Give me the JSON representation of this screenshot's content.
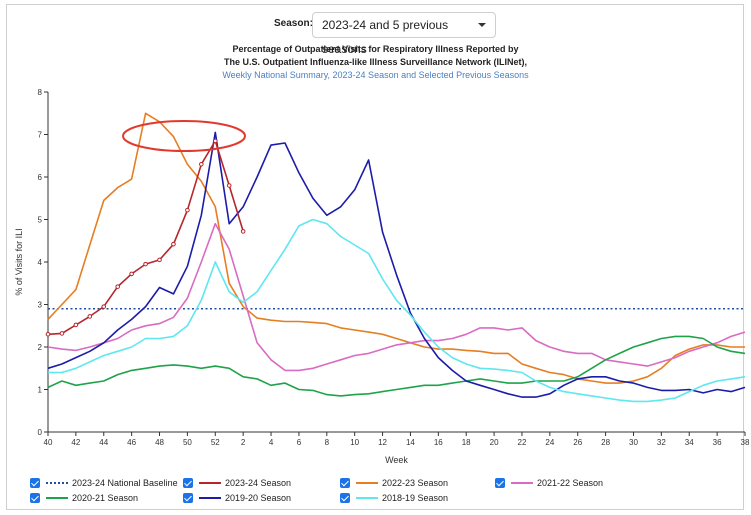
{
  "selector": {
    "label": "Season:",
    "value": "2023-24 and 5 previous seasons"
  },
  "titles": {
    "line1": "Percentage of Outpatient Visits for Respiratory Illness Reported by",
    "line2": "The U.S. Outpatient Influenza-like Illness Surveillance Network (ILINet),",
    "line3": "Weekly National Summary, 2023-24 Season and Selected Previous Seasons"
  },
  "colors": {
    "link": "#4a7fc1",
    "checkbox": "#1a73e8",
    "annotation": "#e03a2e"
  },
  "chart_data": {
    "type": "line",
    "xlabel": "Week",
    "ylabel": "% of Visits for ILI",
    "ylim": [
      0,
      8
    ],
    "yticks": [
      "0",
      "1",
      "2",
      "3",
      "4",
      "5",
      "6",
      "7",
      "8"
    ],
    "xticks": [
      "40",
      "42",
      "44",
      "46",
      "48",
      "50",
      "52",
      "2",
      "4",
      "6",
      "8",
      "10",
      "12",
      "14",
      "16",
      "18",
      "20",
      "22",
      "24",
      "26",
      "28",
      "30",
      "32",
      "34",
      "36",
      "38"
    ],
    "grid": false,
    "baseline": {
      "name": "2023-24 National Baseline",
      "value": 2.9,
      "color": "#1f4fa0"
    },
    "series": [
      {
        "name": "2023-24 Season",
        "color": "#b5262b",
        "markers": true,
        "values": [
          2.3,
          2.32,
          2.52,
          2.72,
          2.95,
          3.42,
          3.72,
          3.95,
          4.05,
          4.42,
          5.22,
          6.3,
          6.85,
          5.8,
          4.72
        ]
      },
      {
        "name": "2022-23 Season",
        "color": "#e67e22",
        "values": [
          2.65,
          3.0,
          3.35,
          4.4,
          5.45,
          5.75,
          5.95,
          7.5,
          7.3,
          6.95,
          6.3,
          5.9,
          5.3,
          3.5,
          2.95,
          2.68,
          2.63,
          2.6,
          2.6,
          2.58,
          2.55,
          2.45,
          2.4,
          2.35,
          2.3,
          2.2,
          2.1,
          2.0,
          1.95,
          1.95,
          1.92,
          1.9,
          1.85,
          1.85,
          1.6,
          1.5,
          1.4,
          1.35,
          1.25,
          1.2,
          1.15,
          1.15,
          1.2,
          1.3,
          1.5,
          1.8,
          1.95,
          2.05,
          2.05,
          2.0,
          2.0
        ]
      },
      {
        "name": "2021-22 Season",
        "color": "#d96bc2",
        "values": [
          2.0,
          1.95,
          1.92,
          2.0,
          2.1,
          2.2,
          2.4,
          2.5,
          2.55,
          2.7,
          3.15,
          4.0,
          4.9,
          4.3,
          3.2,
          2.1,
          1.7,
          1.45,
          1.45,
          1.5,
          1.6,
          1.7,
          1.8,
          1.85,
          1.95,
          2.05,
          2.1,
          2.15,
          2.15,
          2.2,
          2.3,
          2.45,
          2.45,
          2.4,
          2.45,
          2.15,
          2.0,
          1.9,
          1.85,
          1.85,
          1.7,
          1.65,
          1.6,
          1.55,
          1.65,
          1.75,
          1.9,
          2.0,
          2.1,
          2.25,
          2.35
        ]
      },
      {
        "name": "2020-21 Season",
        "color": "#1fa34a",
        "values": [
          1.05,
          1.2,
          1.1,
          1.15,
          1.2,
          1.35,
          1.45,
          1.5,
          1.55,
          1.58,
          1.55,
          1.5,
          1.55,
          1.5,
          1.3,
          1.25,
          1.1,
          1.15,
          1.0,
          0.98,
          0.88,
          0.85,
          0.88,
          0.9,
          0.95,
          1.0,
          1.05,
          1.1,
          1.1,
          1.15,
          1.2,
          1.25,
          1.2,
          1.15,
          1.15,
          1.2,
          1.2,
          1.2,
          1.3,
          1.5,
          1.7,
          1.85,
          2.0,
          2.1,
          2.2,
          2.25,
          2.25,
          2.2,
          2.0,
          1.9,
          1.85
        ]
      },
      {
        "name": "2019-20 Season",
        "color": "#1c1cab",
        "values": [
          1.5,
          1.6,
          1.75,
          1.9,
          2.1,
          2.4,
          2.65,
          2.95,
          3.4,
          3.25,
          3.9,
          5.1,
          7.05,
          4.9,
          5.3,
          6.0,
          6.75,
          6.8,
          6.1,
          5.5,
          5.1,
          5.3,
          5.7,
          6.4,
          4.7,
          3.7,
          2.8,
          2.2,
          1.75,
          1.45,
          1.2,
          1.1,
          1.0,
          0.9,
          0.82,
          0.82,
          0.9,
          1.1,
          1.25,
          1.3,
          1.3,
          1.2,
          1.15,
          1.05,
          0.98,
          0.98,
          1.0,
          0.92,
          1.0,
          0.95,
          1.05
        ]
      },
      {
        "name": "2018-19 Season",
        "color": "#5ee7ee",
        "values": [
          1.4,
          1.4,
          1.5,
          1.65,
          1.8,
          1.9,
          2.0,
          2.2,
          2.2,
          2.25,
          2.5,
          3.1,
          4.0,
          3.3,
          3.05,
          3.3,
          3.8,
          4.3,
          4.85,
          5.0,
          4.9,
          4.6,
          4.4,
          4.2,
          3.6,
          3.1,
          2.75,
          2.35,
          2.0,
          1.75,
          1.6,
          1.5,
          1.48,
          1.45,
          1.4,
          1.2,
          1.05,
          0.95,
          0.9,
          0.85,
          0.8,
          0.75,
          0.72,
          0.72,
          0.75,
          0.8,
          0.95,
          1.1,
          1.2,
          1.25,
          1.3
        ]
      }
    ]
  }
}
